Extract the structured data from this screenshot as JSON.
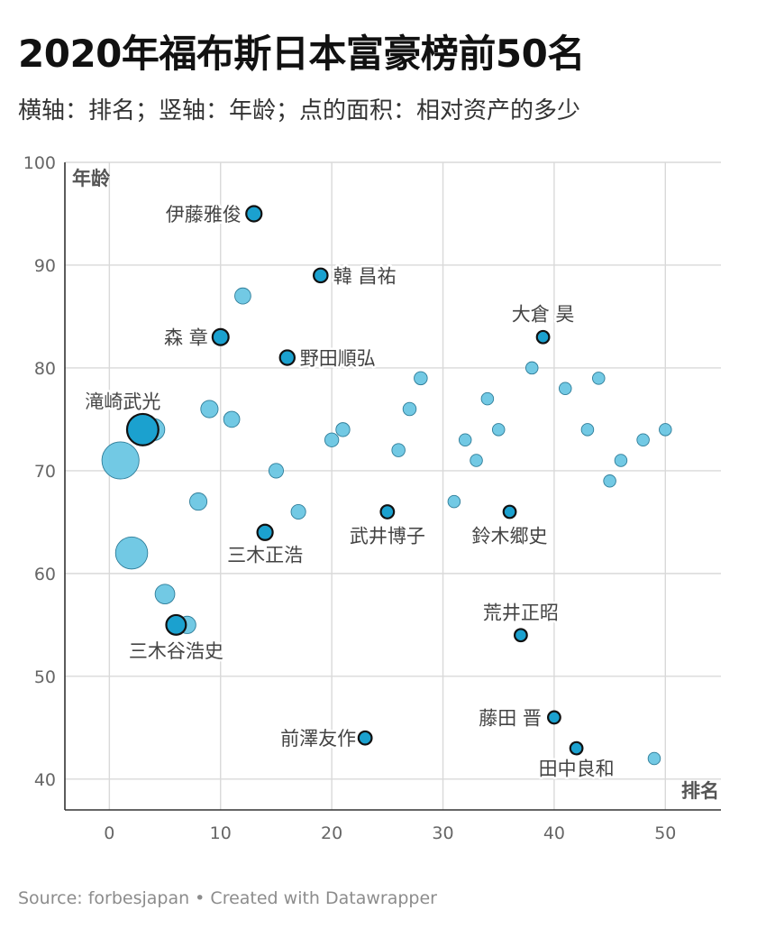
{
  "header": {
    "title": "2020年福布斯日本富豪榜前50名",
    "subtitle": "横轴：排名；竖轴：年龄；点的面积：相对资产的多少"
  },
  "footer": {
    "source": "Source: forbesjapan • Created with Datawrapper"
  },
  "chart_data": {
    "type": "scatter",
    "title": "2020年福布斯日本富豪榜前50名",
    "xlabel": "排名",
    "ylabel": "年龄",
    "xlim": [
      -4,
      55
    ],
    "ylim": [
      37,
      100
    ],
    "xticks": [
      0,
      10,
      20,
      30,
      40,
      50
    ],
    "yticks": [
      40,
      50,
      60,
      70,
      80,
      90,
      100
    ],
    "grid": true,
    "colors": {
      "point": "#6ac6e3",
      "point_highlight": "#1ba1cf",
      "outline_highlight": "#111111"
    },
    "points": [
      {
        "x": 1,
        "y": 71,
        "size": 3.2,
        "label": "",
        "highlight": false
      },
      {
        "x": 2,
        "y": 62,
        "size": 2.4,
        "label": "",
        "highlight": false
      },
      {
        "x": 3,
        "y": 74,
        "size": 2.3,
        "label": "滝崎武光",
        "highlight": true
      },
      {
        "x": 4,
        "y": 74,
        "size": 1.1,
        "label": "",
        "highlight": false
      },
      {
        "x": 5,
        "y": 58,
        "size": 0.9,
        "label": "",
        "highlight": false
      },
      {
        "x": 6,
        "y": 55,
        "size": 0.9,
        "label": "三木谷浩史",
        "highlight": true
      },
      {
        "x": 7,
        "y": 55,
        "size": 0.7,
        "label": "",
        "highlight": false
      },
      {
        "x": 8,
        "y": 67,
        "size": 0.7,
        "label": "",
        "highlight": false
      },
      {
        "x": 9,
        "y": 76,
        "size": 0.7,
        "label": "",
        "highlight": false
      },
      {
        "x": 10,
        "y": 83,
        "size": 0.6,
        "label": "森 章",
        "highlight": true
      },
      {
        "x": 11,
        "y": 75,
        "size": 0.6,
        "label": "",
        "highlight": false
      },
      {
        "x": 12,
        "y": 87,
        "size": 0.6,
        "label": "",
        "highlight": false
      },
      {
        "x": 13,
        "y": 95,
        "size": 0.55,
        "label": "伊藤雅俊",
        "highlight": true
      },
      {
        "x": 14,
        "y": 64,
        "size": 0.55,
        "label": "三木正浩",
        "highlight": true
      },
      {
        "x": 15,
        "y": 70,
        "size": 0.5,
        "label": "",
        "highlight": false
      },
      {
        "x": 16,
        "y": 81,
        "size": 0.5,
        "label": "野田順弘",
        "highlight": true
      },
      {
        "x": 17,
        "y": 66,
        "size": 0.5,
        "label": "",
        "highlight": false
      },
      {
        "x": 19,
        "y": 89,
        "size": 0.45,
        "label": "韓 昌祐",
        "highlight": true
      },
      {
        "x": 20,
        "y": 73,
        "size": 0.45,
        "label": "",
        "highlight": false
      },
      {
        "x": 21,
        "y": 74,
        "size": 0.45,
        "label": "",
        "highlight": false
      },
      {
        "x": 23,
        "y": 44,
        "size": 0.4,
        "label": "前澤友作",
        "highlight": true
      },
      {
        "x": 25,
        "y": 66,
        "size": 0.4,
        "label": "武井博子",
        "highlight": true
      },
      {
        "x": 26,
        "y": 72,
        "size": 0.4,
        "label": "",
        "highlight": false
      },
      {
        "x": 27,
        "y": 76,
        "size": 0.4,
        "label": "",
        "highlight": false
      },
      {
        "x": 28,
        "y": 79,
        "size": 0.4,
        "label": "",
        "highlight": false
      },
      {
        "x": 31,
        "y": 67,
        "size": 0.35,
        "label": "",
        "highlight": false
      },
      {
        "x": 32,
        "y": 73,
        "size": 0.35,
        "label": "",
        "highlight": false
      },
      {
        "x": 33,
        "y": 71,
        "size": 0.35,
        "label": "",
        "highlight": false
      },
      {
        "x": 34,
        "y": 77,
        "size": 0.35,
        "label": "",
        "highlight": false
      },
      {
        "x": 35,
        "y": 74,
        "size": 0.35,
        "label": "",
        "highlight": false
      },
      {
        "x": 36,
        "y": 66,
        "size": 0.35,
        "label": "鈴木郷史",
        "highlight": true
      },
      {
        "x": 37,
        "y": 54,
        "size": 0.35,
        "label": "荒井正昭",
        "highlight": true
      },
      {
        "x": 38,
        "y": 80,
        "size": 0.35,
        "label": "",
        "highlight": false
      },
      {
        "x": 39,
        "y": 83,
        "size": 0.35,
        "label": "大倉 昊",
        "highlight": true
      },
      {
        "x": 40,
        "y": 46,
        "size": 0.35,
        "label": "藤田 晋",
        "highlight": true
      },
      {
        "x": 41,
        "y": 78,
        "size": 0.35,
        "label": "",
        "highlight": false
      },
      {
        "x": 42,
        "y": 43,
        "size": 0.35,
        "label": "田中良和",
        "highlight": true
      },
      {
        "x": 43,
        "y": 74,
        "size": 0.35,
        "label": "",
        "highlight": false
      },
      {
        "x": 44,
        "y": 79,
        "size": 0.35,
        "label": "",
        "highlight": false
      },
      {
        "x": 45,
        "y": 69,
        "size": 0.35,
        "label": "",
        "highlight": false
      },
      {
        "x": 46,
        "y": 71,
        "size": 0.35,
        "label": "",
        "highlight": false
      },
      {
        "x": 48,
        "y": 73,
        "size": 0.35,
        "label": "",
        "highlight": false
      },
      {
        "x": 49,
        "y": 42,
        "size": 0.35,
        "label": "",
        "highlight": false
      },
      {
        "x": 50,
        "y": 74,
        "size": 0.35,
        "label": "",
        "highlight": false
      }
    ]
  }
}
